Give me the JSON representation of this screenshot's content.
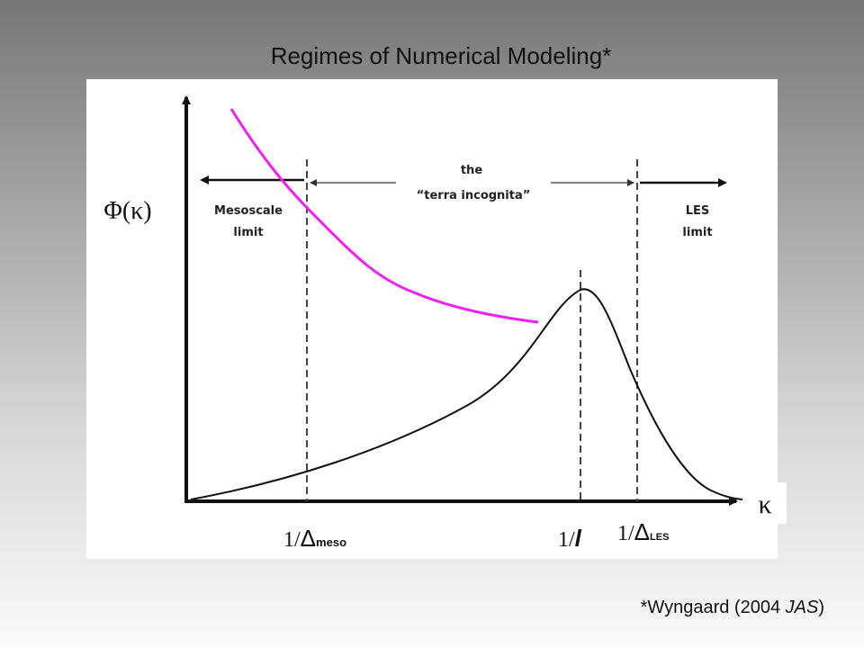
{
  "title": "Regimes of Numerical Modeling*",
  "y_axis_label": "Φ(κ)",
  "x_axis_label": "κ",
  "regions": {
    "mesoscale": {
      "line1": "Mesoscale",
      "line2": "limit"
    },
    "terra_incognita": {
      "line1": "the",
      "line2": "“terra incognita”"
    },
    "les": {
      "line1": "LES",
      "line2": "limit"
    }
  },
  "ticks": {
    "meso": {
      "prefix": "1/",
      "symbol": "Δ",
      "subscript": "meso"
    },
    "l": {
      "prefix": "1/",
      "symbol": "l"
    },
    "les": {
      "prefix": "1/",
      "symbol": "Δ",
      "subscript": "LES"
    }
  },
  "citation": {
    "prefix": "*Wyngaard (2004 ",
    "journal": "JAS",
    "suffix": ")"
  },
  "colors": {
    "magenta_curve": "#ee22ee",
    "black_curve": "#111111",
    "axis": "#111111"
  }
}
